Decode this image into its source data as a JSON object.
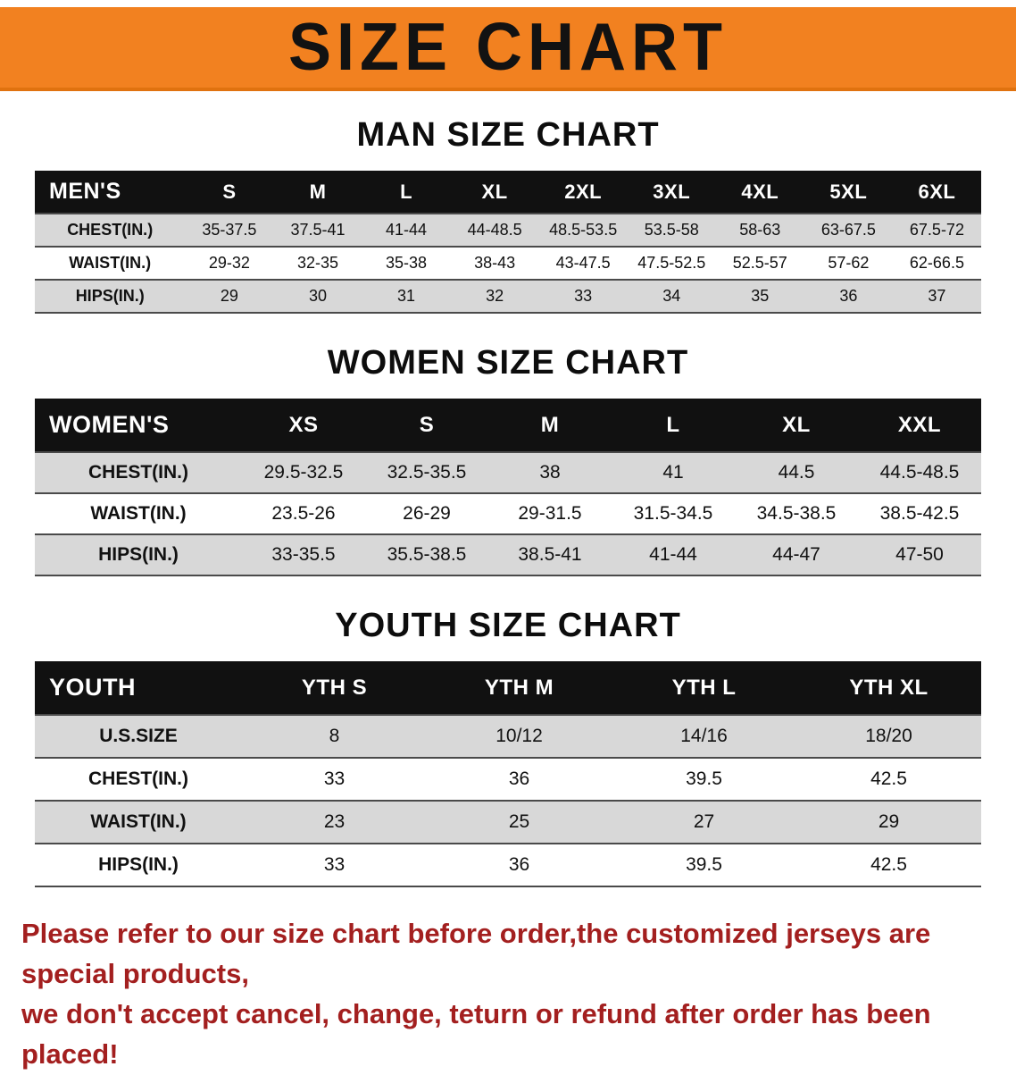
{
  "banner": {
    "title": "SIZE CHART"
  },
  "sections": [
    {
      "heading": "MAN SIZE CHART",
      "table": {
        "header": [
          "MEN'S",
          "S",
          "M",
          "L",
          "XL",
          "2XL",
          "3XL",
          "4XL",
          "5XL",
          "6XL"
        ],
        "rows": [
          [
            "CHEST(IN.)",
            "35-37.5",
            "37.5-41",
            "41-44",
            "44-48.5",
            "48.5-53.5",
            "53.5-58",
            "58-63",
            "63-67.5",
            "67.5-72"
          ],
          [
            "WAIST(IN.)",
            "29-32",
            "32-35",
            "35-38",
            "38-43",
            "43-47.5",
            "47.5-52.5",
            "52.5-57",
            "57-62",
            "62-66.5"
          ],
          [
            "HIPS(IN.)",
            "29",
            "30",
            "31",
            "32",
            "33",
            "34",
            "35",
            "36",
            "37"
          ]
        ]
      }
    },
    {
      "heading": "WOMEN SIZE CHART",
      "table": {
        "header": [
          "WOMEN'S",
          "XS",
          "S",
          "M",
          "L",
          "XL",
          "XXL"
        ],
        "rows": [
          [
            "CHEST(IN.)",
            "29.5-32.5",
            "32.5-35.5",
            "38",
            "41",
            "44.5",
            "44.5-48.5"
          ],
          [
            "WAIST(IN.)",
            "23.5-26",
            "26-29",
            "29-31.5",
            "31.5-34.5",
            "34.5-38.5",
            "38.5-42.5"
          ],
          [
            "HIPS(IN.)",
            "33-35.5",
            "35.5-38.5",
            "38.5-41",
            "41-44",
            "44-47",
            "47-50"
          ]
        ]
      }
    },
    {
      "heading": "YOUTH SIZE CHART",
      "table": {
        "header": [
          "YOUTH",
          "YTH S",
          "YTH M",
          "YTH L",
          "YTH XL"
        ],
        "rows": [
          [
            "U.S.SIZE",
            "8",
            "10/12",
            "14/16",
            "18/20"
          ],
          [
            "CHEST(IN.)",
            "33",
            "36",
            "39.5",
            "42.5"
          ],
          [
            "WAIST(IN.)",
            "23",
            "25",
            "27",
            "29"
          ],
          [
            "HIPS(IN.)",
            "33",
            "36",
            "39.5",
            "42.5"
          ]
        ]
      }
    }
  ],
  "notice": {
    "line1": "Please refer to our size chart before order,the customized jerseys are special products,",
    "line2": "we don't accept cancel, change, teturn or refund after order has been placed!"
  },
  "colors": {
    "banner_orange": "#F28120",
    "header_black": "#111111",
    "row_gray": "#d8d8d8",
    "notice_red": "#A31F1F"
  }
}
